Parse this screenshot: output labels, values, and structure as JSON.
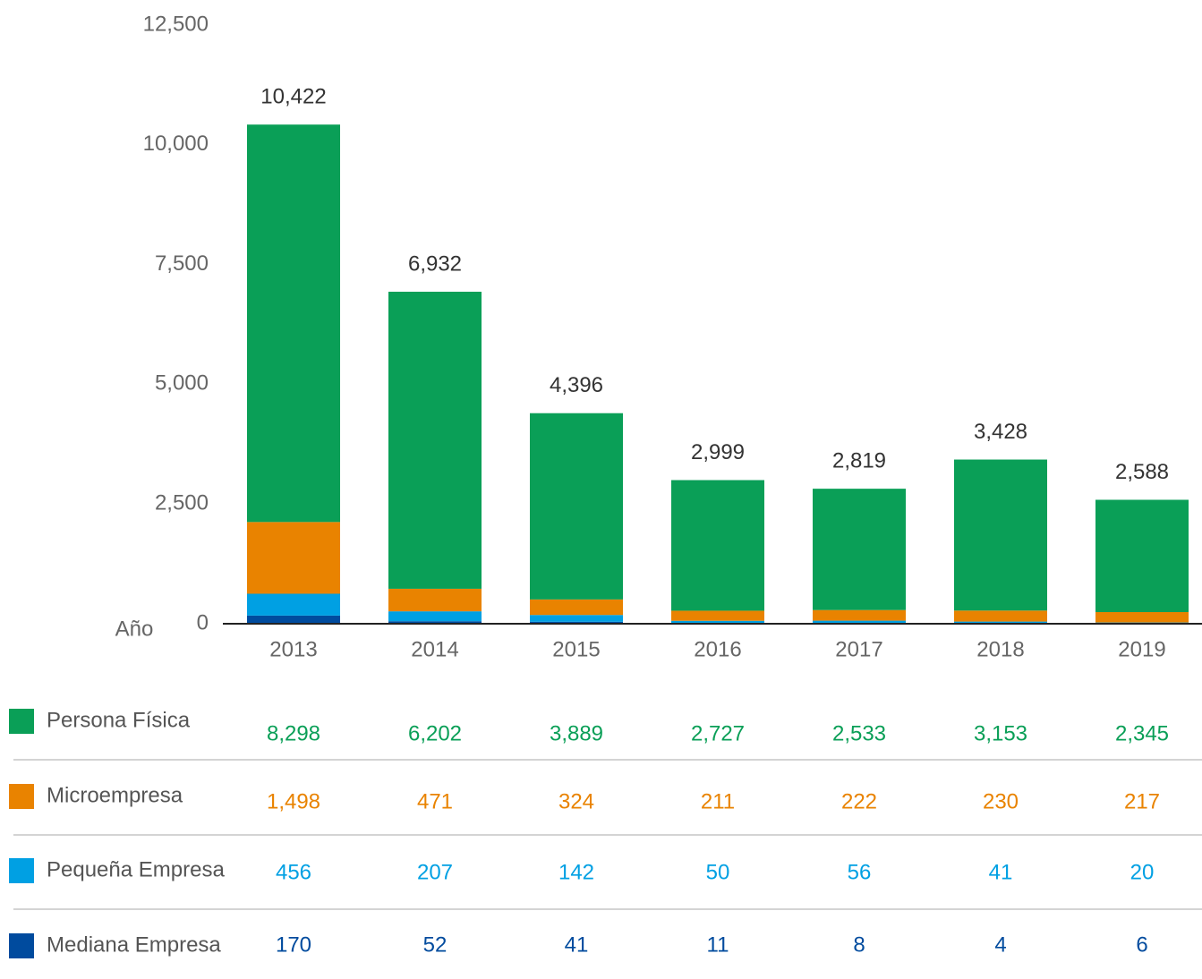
{
  "chart_data": {
    "type": "stacked_bar",
    "x_label": "Año",
    "categories": [
      "2013",
      "2014",
      "2015",
      "2016",
      "2017",
      "2018",
      "2019"
    ],
    "series": [
      {
        "name": "Persona Física",
        "color": "#0a9f57",
        "values": [
          8298,
          6202,
          3889,
          2727,
          2533,
          3153,
          2345
        ],
        "value_labels": [
          "8,298",
          "6,202",
          "3,889",
          "2,727",
          "2,533",
          "3,153",
          "2,345"
        ]
      },
      {
        "name": "Microempresa",
        "color": "#e98300",
        "values": [
          1498,
          471,
          324,
          211,
          222,
          230,
          217
        ],
        "value_labels": [
          "1,498",
          "471",
          "324",
          "211",
          "222",
          "230",
          "217"
        ]
      },
      {
        "name": "Pequeña Empresa",
        "color": "#00a0e3",
        "values": [
          456,
          207,
          142,
          50,
          56,
          41,
          20
        ]
      },
      {
        "name": "Mediana Empresa",
        "color": "#004b9e",
        "values": [
          170,
          52,
          41,
          11,
          8,
          4,
          6
        ]
      }
    ],
    "totals": [
      10422,
      6932,
      4396,
      2999,
      2819,
      3428,
      2588
    ],
    "total_labels": [
      "10,422",
      "6,932",
      "4,396",
      "2,999",
      "2,819",
      "3,428",
      "2,588"
    ],
    "ylim": [
      0,
      12500
    ],
    "yticks": [
      0,
      {
        "value": 2500,
        "label": "2,500"
      },
      {
        "value": 5000,
        "label": "5,000"
      },
      {
        "value": 7500,
        "label": "7,500"
      },
      {
        "value": 10000,
        "label": "10,000"
      },
      {
        "value": 12500,
        "label": "12,500"
      }
    ]
  }
}
